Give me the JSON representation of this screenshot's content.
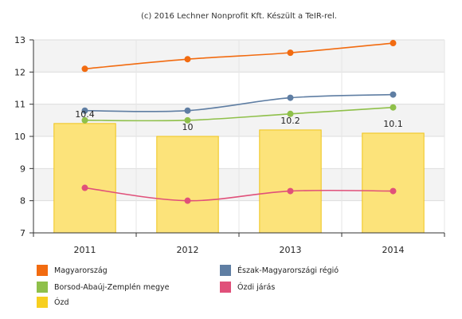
{
  "credit": "(c) 2016 Lechner Nonprofit Kft. Készült a TeIR-rel.",
  "chart_data": {
    "type": "bar+line",
    "categories": [
      "2011",
      "2012",
      "2013",
      "2014"
    ],
    "ylim": [
      7,
      13
    ],
    "yticks": [
      "7",
      "8",
      "9",
      "10",
      "11",
      "12",
      "13"
    ],
    "grid": true,
    "legend_position": "bottom",
    "series": [
      {
        "name": "Magyarország",
        "type": "line",
        "color": "#f26b10",
        "values": [
          12.1,
          12.4,
          12.6,
          12.9
        ]
      },
      {
        "name": "Észak-Magyarországi régió",
        "type": "line",
        "color": "#5f7ea3",
        "values": [
          10.8,
          10.8,
          11.2,
          11.3
        ]
      },
      {
        "name": "Borsod-Abaúj-Zemplén megye",
        "type": "line",
        "color": "#8fc04a",
        "values": [
          10.5,
          10.5,
          10.7,
          10.9
        ]
      },
      {
        "name": "Ózdi járás",
        "type": "line",
        "color": "#e0507a",
        "values": [
          8.4,
          8.0,
          8.3,
          8.3
        ]
      },
      {
        "name": "Ózd",
        "type": "bar",
        "color": "#fce37a",
        "values": [
          10.4,
          10.0,
          10.2,
          10.1
        ],
        "data_labels": [
          "10.4",
          "10",
          "10.2",
          "10.1"
        ]
      }
    ]
  }
}
